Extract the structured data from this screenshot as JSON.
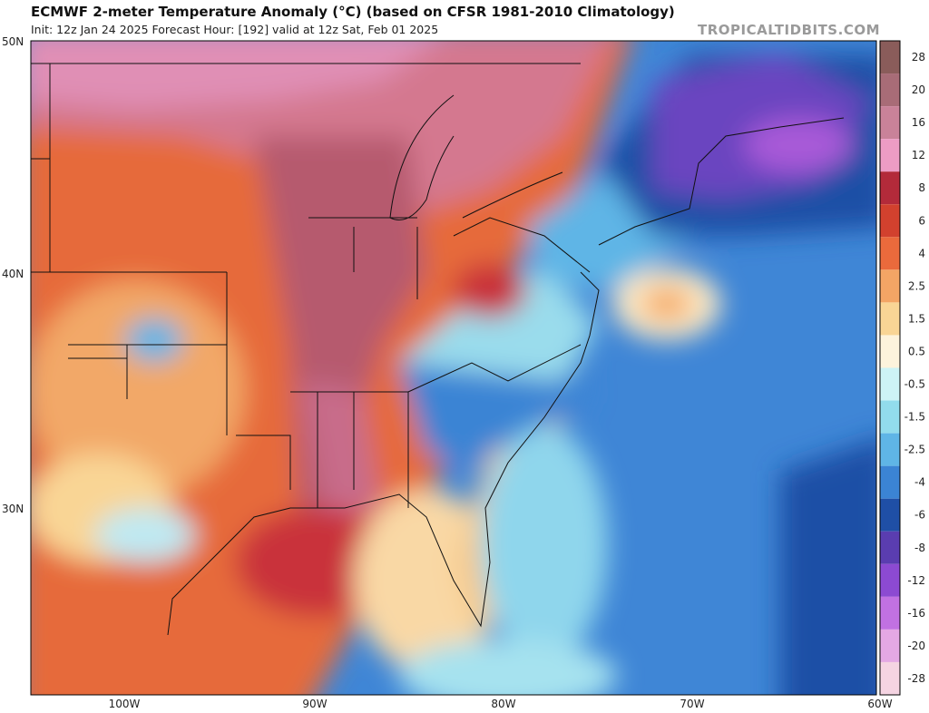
{
  "header": {
    "title": "ECMWF 2-meter Temperature Anomaly (°C) (based on CFSR 1981-2010 Climatology)",
    "subtitle": "Init: 12z Jan 24 2025   Forecast Hour: [192]   valid at 12z Sat, Feb 01 2025",
    "watermark": "TROPICALTIDBITS.COM"
  },
  "map": {
    "lat_labels": [
      "50N",
      "40N",
      "30N"
    ],
    "lon_labels": [
      "100W",
      "90W",
      "80W",
      "70W",
      "60W"
    ]
  },
  "colorbar": {
    "labels": [
      28,
      20,
      16,
      12,
      8,
      6,
      4,
      2.5,
      1.5,
      0.5,
      -0.5,
      -1.5,
      -2.5,
      -4,
      -6,
      -8,
      -12,
      -16,
      -20,
      -28
    ],
    "colors": [
      "#8a5c5a",
      "#a86c77",
      "#c98299",
      "#ec9cc4",
      "#b32a3a",
      "#d2412e",
      "#ea6a3c",
      "#f3a565",
      "#f9d595",
      "#fdf3dc",
      "#cdf3f6",
      "#92dcec",
      "#5fb5e6",
      "#3b84d4",
      "#1f4fa6",
      "#5a3db0",
      "#8c4ad2",
      "#c171e2",
      "#e4a8e4",
      "#f5d4e2"
    ]
  }
}
